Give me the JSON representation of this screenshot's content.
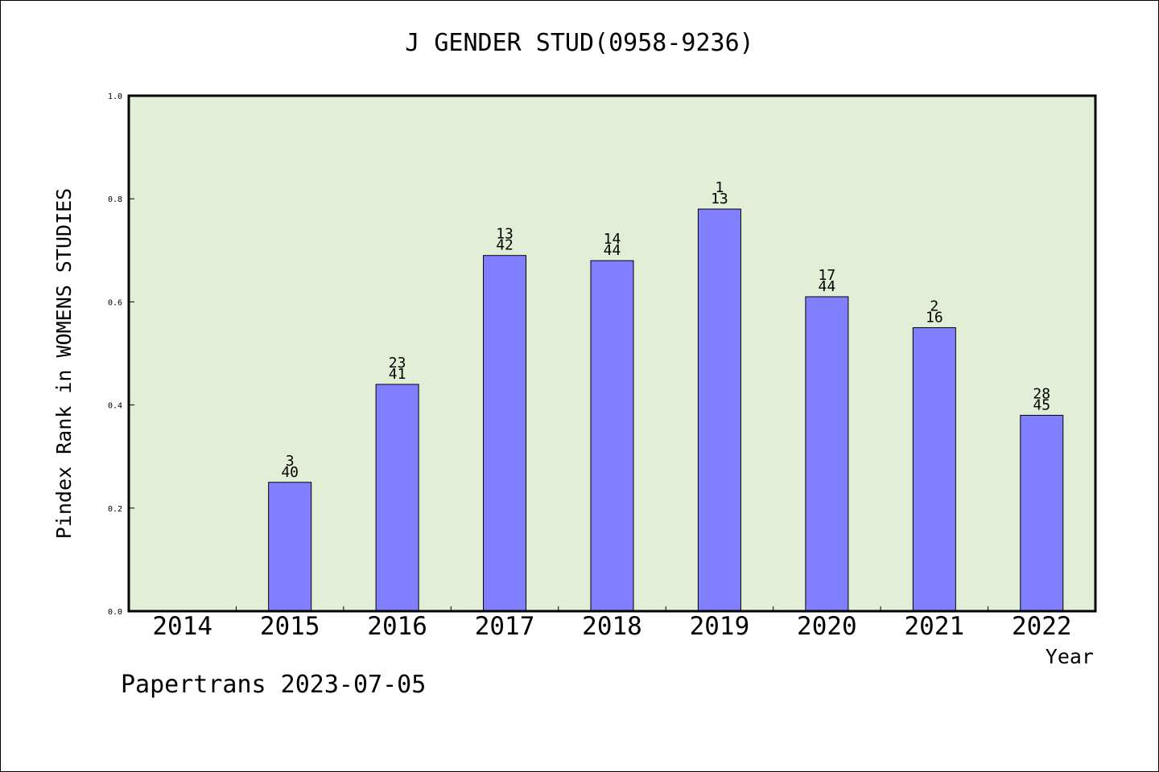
{
  "chart_data": {
    "type": "bar",
    "title": "J GENDER STUD(0958-9236)",
    "xlabel": "Year",
    "ylabel": "Pindex Rank in WOMENS STUDIES",
    "ylim": [
      0,
      1.0
    ],
    "yticks": [
      "0.0",
      "0.2",
      "0.4",
      "0.6",
      "0.8",
      "1.0"
    ],
    "categories": [
      "2014",
      "2015",
      "2016",
      "2017",
      "2018",
      "2019",
      "2020",
      "2021",
      "2022"
    ],
    "values": [
      null,
      0.25,
      0.44,
      0.69,
      0.68,
      0.78,
      0.61,
      0.55,
      0.38
    ],
    "labels_top": [
      "",
      "3",
      "23",
      "13",
      "14",
      "1",
      "17",
      "2",
      "28"
    ],
    "labels_bottom": [
      "",
      "40",
      "41",
      "42",
      "44",
      "13",
      "44",
      "16",
      "45"
    ],
    "grid": false,
    "colors": {
      "plot_bg": "#e2efd6",
      "bar_fill": "#8080ff",
      "bar_stroke": "#000000"
    }
  },
  "footer": "Papertrans 2023-07-05"
}
